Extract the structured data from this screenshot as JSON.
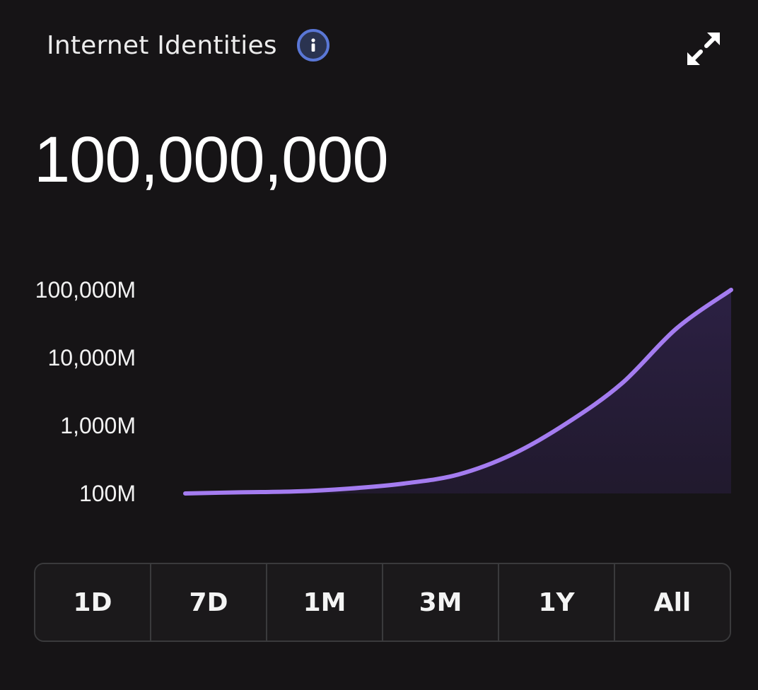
{
  "card": {
    "title": "Internet Identities",
    "value": "100,000,000"
  },
  "icons": {
    "info": "info-icon",
    "expand": "expand-icon"
  },
  "colors": {
    "background": "#161416",
    "line": "#a47cf0",
    "fill": "#2a2140",
    "info_ring": "#5a77d6"
  },
  "chart_data": {
    "type": "area",
    "title": "",
    "xlabel": "",
    "ylabel": "",
    "yscale": "log",
    "yticks": [
      "100,000M",
      "10,000M",
      "1,000M",
      "100M"
    ],
    "ylim": [
      100,
      100000
    ],
    "x": [
      0,
      10,
      20,
      30,
      40,
      50,
      60,
      70,
      80,
      90,
      100
    ],
    "series": [
      {
        "values": [
          100,
          104,
          107,
          118,
          140,
          190,
          380,
          1100,
          4200,
          27000,
          100000
        ]
      }
    ],
    "grid": false,
    "legend": "none"
  },
  "range_selector": {
    "options": [
      "1D",
      "7D",
      "1M",
      "3M",
      "1Y",
      "All"
    ]
  }
}
